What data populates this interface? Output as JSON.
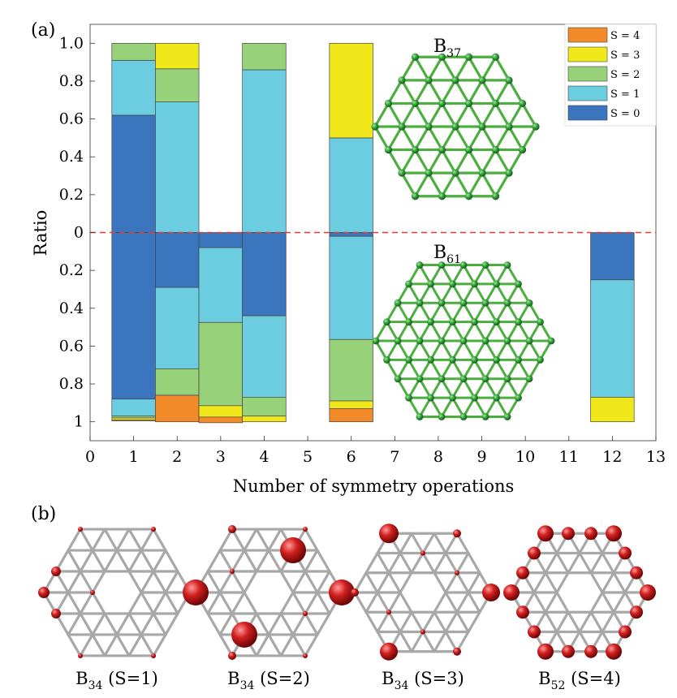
{
  "panel_a": {
    "label": "(a)",
    "chart_data": {
      "type": "bar",
      "subtype": "stacked-diverging",
      "xlabel": "Number of symmetry operations",
      "ylabel": "Ratio",
      "xlim": [
        0,
        13
      ],
      "xticks": [
        "0",
        "1",
        "2",
        "3",
        "4",
        "5",
        "6",
        "7",
        "8",
        "9",
        "10",
        "11",
        "12",
        "13"
      ],
      "ylim": [
        -1.1,
        1.1
      ],
      "ytick_labels_top": [
        "0",
        "0.2",
        "0.4",
        "0.6",
        "0.8",
        "1.0"
      ],
      "ytick_labels_bottom": [
        "0",
        "0.2",
        "0.4",
        "0.6",
        "0.8",
        "1"
      ],
      "bar_width": 1,
      "zero_line": "dashed red",
      "grid": false,
      "legend_position": "top-right",
      "legend_order": [
        "S = 4",
        "S = 3",
        "S = 2",
        "S = 1",
        "S = 0"
      ],
      "series_colors": {
        "S = 0": "#3a75bd",
        "S = 1": "#6ccde0",
        "S = 2": "#97d17a",
        "S = 3": "#f1e81c",
        "S = 4": "#f28a2a"
      },
      "series_order": [
        "S = 0",
        "S = 1",
        "S = 2",
        "S = 3",
        "S = 4"
      ],
      "top_group": {
        "structure": "B37",
        "bars": [
          {
            "x": 1,
            "values": [
              0.62,
              0.29,
              0.09,
              0,
              0
            ]
          },
          {
            "x": 2,
            "values": [
              0,
              0.69,
              0.175,
              0.135,
              0
            ]
          },
          {
            "x": 4,
            "values": [
              0,
              0.86,
              0.14,
              0,
              0
            ]
          },
          {
            "x": 6,
            "values": [
              0,
              0.5,
              0,
              0.5,
              0
            ]
          }
        ]
      },
      "bottom_group": {
        "structure": "B61",
        "bars": [
          {
            "x": 1,
            "values": [
              0.88,
              0.09,
              0.01,
              0.01,
              0.005
            ]
          },
          {
            "x": 2,
            "values": [
              0.29,
              0.43,
              0.14,
              0,
              0.14
            ]
          },
          {
            "x": 3,
            "values": [
              0.08,
              0.395,
              0.44,
              0.06,
              0.03
            ]
          },
          {
            "x": 4,
            "values": [
              0.44,
              0.43,
              0.1,
              0.03,
              0
            ]
          },
          {
            "x": 6,
            "values": [
              0.02,
              0.545,
              0.325,
              0.04,
              0.07
            ]
          },
          {
            "x": 12,
            "values": [
              0.25,
              0.62,
              0,
              0.13,
              0
            ]
          }
        ]
      }
    },
    "insets": {
      "top": {
        "base": "B",
        "sub": "37"
      },
      "bottom": {
        "base": "B",
        "sub": "61"
      }
    },
    "colors": {
      "node": "#2f9b38",
      "bond": "#4cae3f",
      "zero_line": "#e53935"
    }
  },
  "panel_b": {
    "label": "(b)",
    "structures": [
      {
        "base": "B",
        "sub": "34",
        "suffix": " (S=1)"
      },
      {
        "base": "B",
        "sub": "34",
        "suffix": " (S=2)"
      },
      {
        "base": "B",
        "sub": "34",
        "suffix": " (S=3)"
      },
      {
        "base": "B",
        "sub": "52",
        "suffix": " (S=4)"
      }
    ],
    "colors": {
      "bond": "#a8a8a8",
      "atom": "#d21f1f"
    }
  }
}
